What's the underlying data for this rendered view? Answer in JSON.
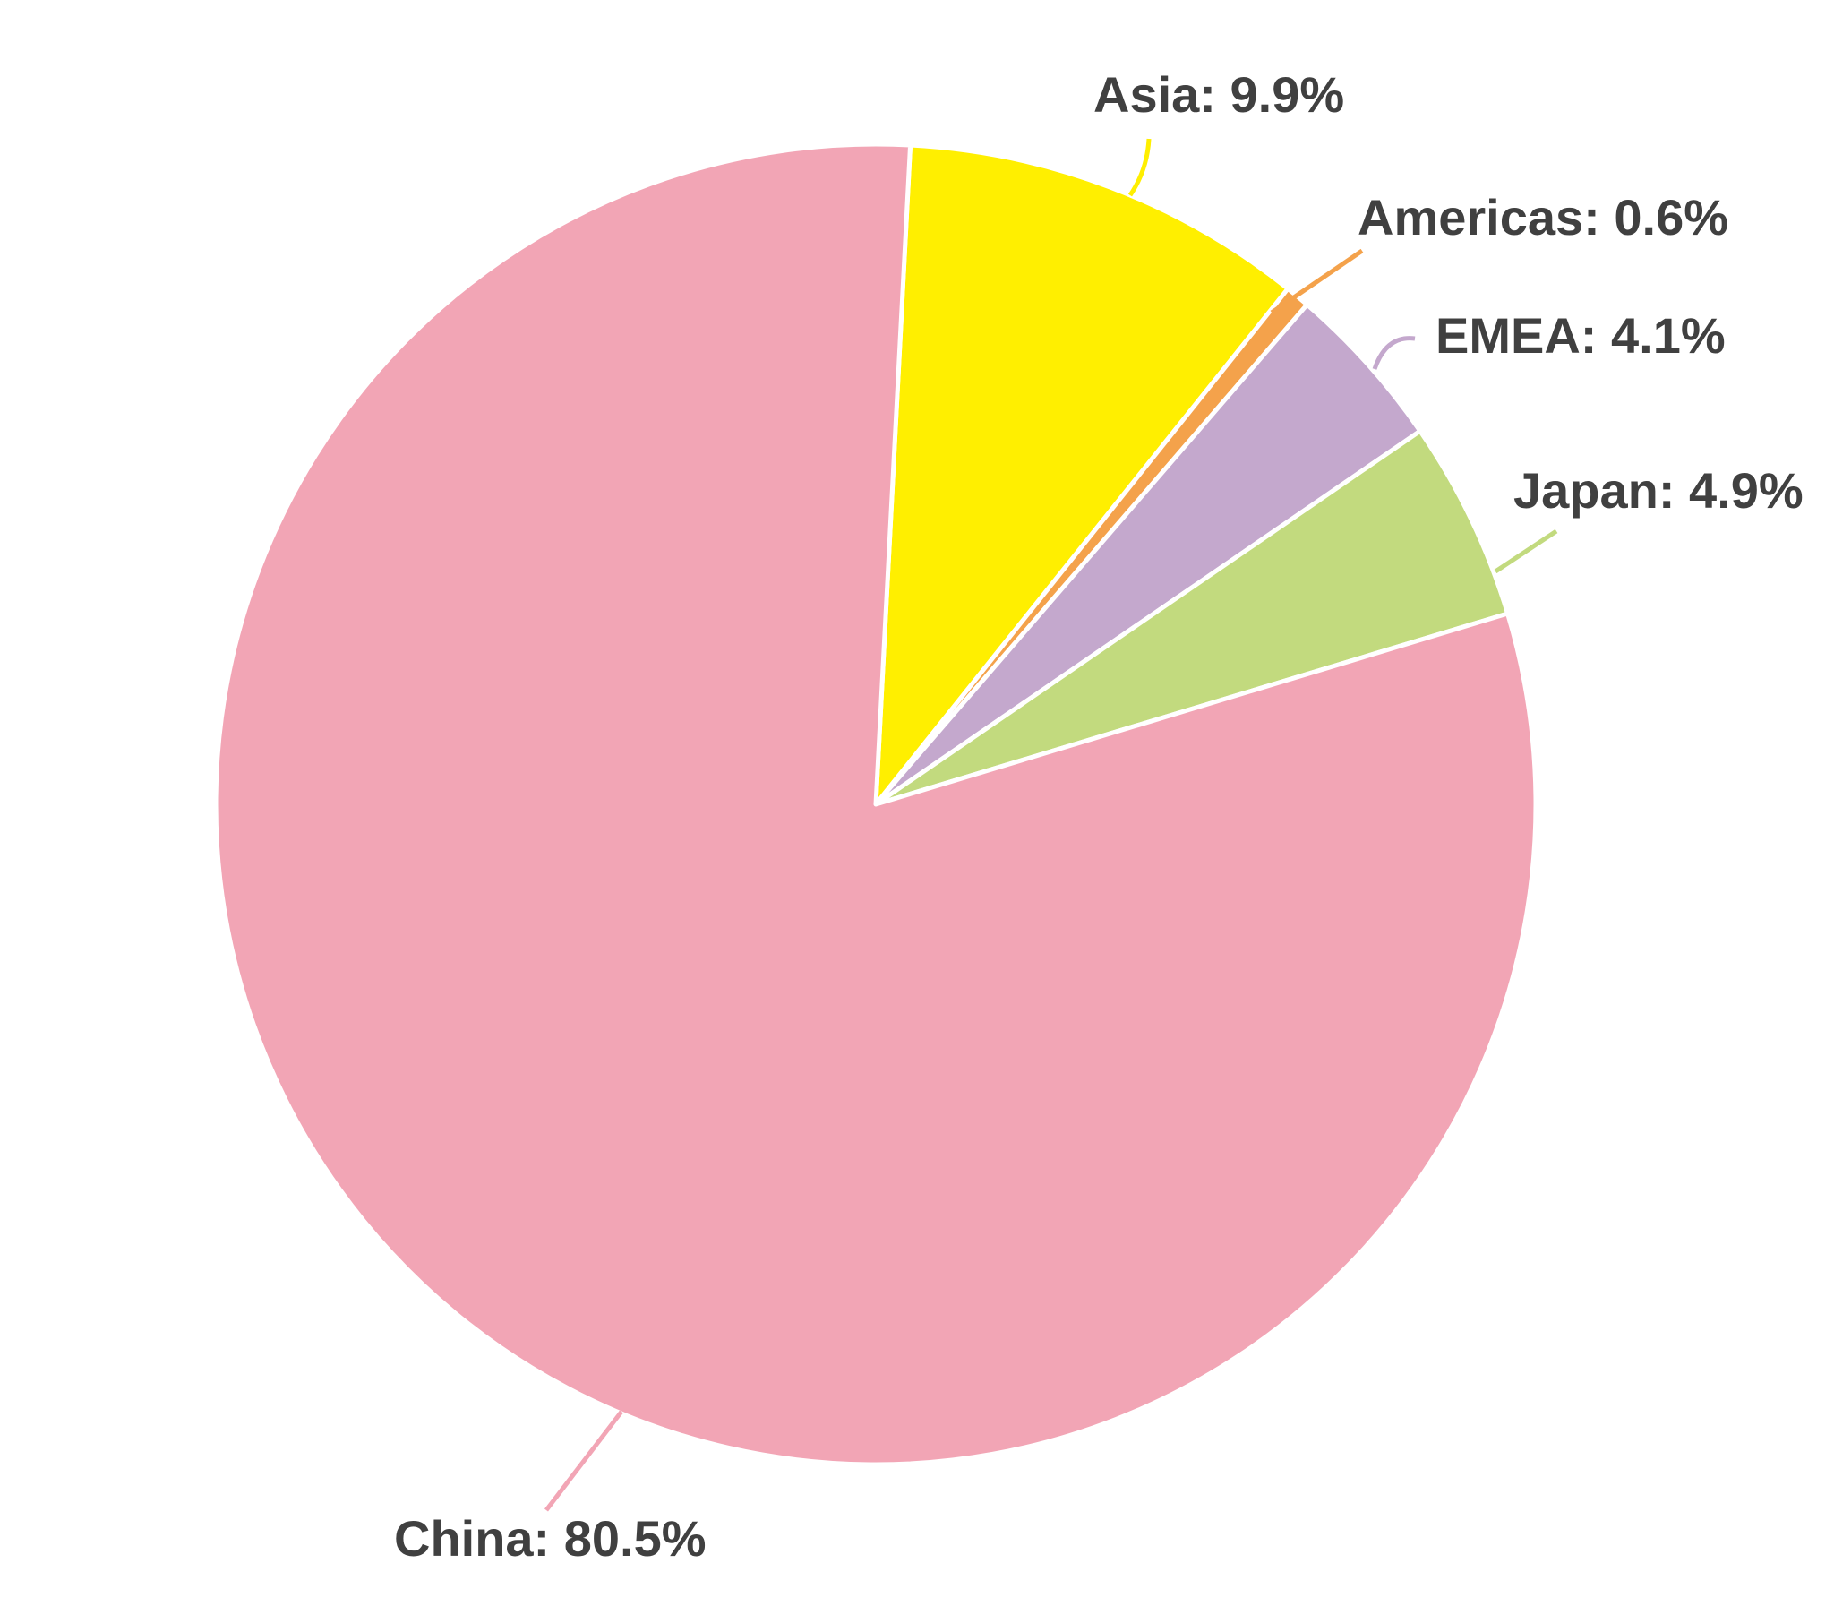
{
  "chart_data": {
    "type": "pie",
    "start_angle_deg": 3,
    "direction": "clockwise",
    "slice_stroke_color": "#ffffff",
    "label_color": "#404040",
    "slices": [
      {
        "name": "Asia",
        "value": 9.9,
        "label": "Asia: 9.9%",
        "color": "#FFEF00"
      },
      {
        "name": "Americas",
        "value": 0.6,
        "label": "Americas: 0.6%",
        "color": "#F4A24B"
      },
      {
        "name": "EMEA",
        "value": 4.1,
        "label": "EMEA: 4.1%",
        "color": "#C4A8CD"
      },
      {
        "name": "Japan",
        "value": 4.9,
        "label": "Japan: 4.9%",
        "color": "#C2DA7E"
      },
      {
        "name": "China",
        "value": 80.5,
        "label": "China: 80.5%",
        "color": "#F2A5B5"
      }
    ]
  }
}
